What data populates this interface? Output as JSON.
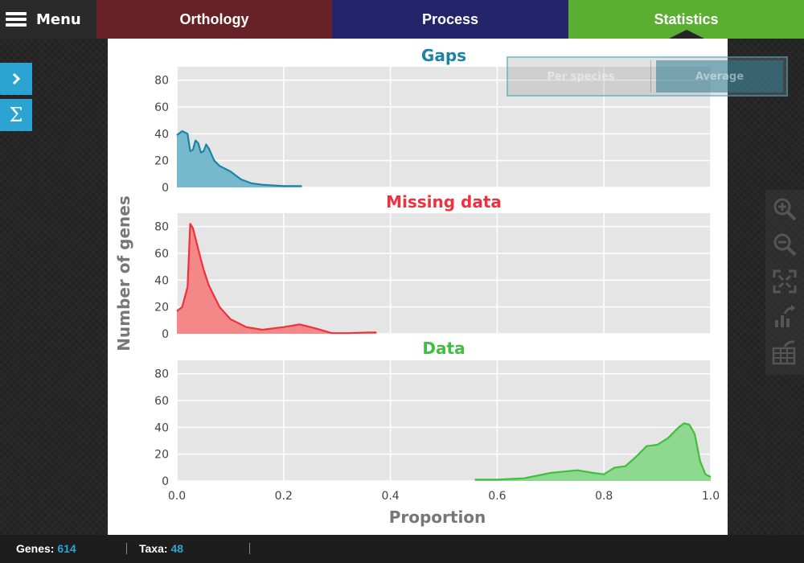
{
  "nav": {
    "menu_label": "Menu",
    "tabs": [
      {
        "label": "Orthology",
        "color": "#662227"
      },
      {
        "label": "Process",
        "color": "#23246a"
      },
      {
        "label": "Statistics",
        "color": "#5aae32",
        "active": true
      }
    ]
  },
  "sidebar": {
    "expand_icon": "chevron-right-icon",
    "summary_label": "Σ"
  },
  "view_toggle": {
    "options": [
      "Per species",
      "Average"
    ],
    "selected": "Average"
  },
  "toolbar": {
    "icons": [
      "zoom-in-icon",
      "zoom-out-icon",
      "fit-screen-icon",
      "export-chart-icon",
      "export-table-icon"
    ]
  },
  "chart_data": {
    "type": "area",
    "ylabel": "Number of genes",
    "xlabel": "Proportion",
    "xlim": [
      0.0,
      1.0
    ],
    "ylim": [
      0,
      90
    ],
    "x_ticks": [
      "0.0",
      "0.2",
      "0.4",
      "0.6",
      "0.8",
      "1.0"
    ],
    "y_ticks": [
      "0",
      "20",
      "40",
      "60",
      "80"
    ],
    "grid": true,
    "panels": [
      {
        "title": "Gaps",
        "color": "#1a84a8",
        "fill": "#76b9cd",
        "x": [
          0.0,
          0.01,
          0.02,
          0.025,
          0.03,
          0.035,
          0.04,
          0.045,
          0.05,
          0.055,
          0.06,
          0.07,
          0.08,
          0.1,
          0.12,
          0.14,
          0.16,
          0.2,
          0.234
        ],
        "y": [
          39,
          42,
          40,
          27,
          28,
          35,
          33,
          26,
          27,
          32,
          29,
          20,
          16,
          12,
          6,
          3,
          2,
          1,
          1
        ]
      },
      {
        "title": "Missing data",
        "color": "#f0303a",
        "fill": "#f48888",
        "x": [
          0.0,
          0.01,
          0.02,
          0.025,
          0.03,
          0.04,
          0.05,
          0.06,
          0.08,
          0.1,
          0.13,
          0.16,
          0.2,
          0.23,
          0.26,
          0.29,
          0.32,
          0.36,
          0.374
        ],
        "y": [
          17,
          20,
          35,
          82,
          79,
          63,
          48,
          36,
          20,
          11,
          5,
          3,
          5,
          7,
          4,
          0.5,
          0.5,
          1,
          1
        ]
      },
      {
        "title": "Data",
        "color": "#3fbf3f",
        "fill": "#8fd88f",
        "x": [
          0.558,
          0.6,
          0.65,
          0.7,
          0.75,
          0.78,
          0.8,
          0.82,
          0.84,
          0.86,
          0.88,
          0.9,
          0.92,
          0.94,
          0.95,
          0.96,
          0.97,
          0.98,
          0.99,
          1.0
        ],
        "y": [
          1,
          1,
          2,
          6,
          8,
          6,
          5,
          10,
          11,
          18,
          26,
          27,
          32,
          40,
          43,
          42,
          35,
          15,
          5,
          3
        ]
      }
    ]
  },
  "status": {
    "genes_label": "Genes:",
    "genes_value": "614",
    "taxa_label": "Taxa:",
    "taxa_value": "48"
  }
}
